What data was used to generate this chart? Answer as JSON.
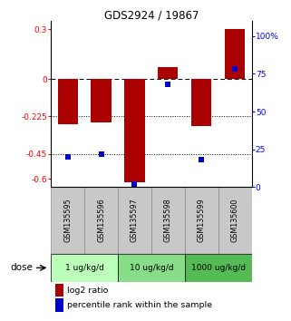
{
  "title": "GDS2924 / 19867",
  "samples": [
    "GSM135595",
    "GSM135596",
    "GSM135597",
    "GSM135598",
    "GSM135599",
    "GSM135600"
  ],
  "log2_ratio": [
    -0.27,
    -0.26,
    -0.62,
    0.07,
    -0.28,
    0.3
  ],
  "percentile_rank": [
    20,
    22,
    2,
    68,
    18,
    78
  ],
  "dose_groups": [
    {
      "label": "1 ug/kg/d",
      "start": 0,
      "end": 1,
      "color": "#bbffbb"
    },
    {
      "label": "10 ug/kg/d",
      "start": 2,
      "end": 3,
      "color": "#88dd88"
    },
    {
      "label": "1000 ug/kg/d",
      "start": 4,
      "end": 5,
      "color": "#55bb55"
    }
  ],
  "ylim_left": [
    -0.65,
    0.35
  ],
  "ylim_right": [
    0,
    110
  ],
  "yticks_left": [
    0.3,
    0.0,
    -0.225,
    -0.45,
    -0.6
  ],
  "yticks_left_labels": [
    "0.3",
    "0",
    "-0.225",
    "-0.45",
    "-0.6"
  ],
  "yticks_right": [
    100,
    75,
    50,
    25,
    0
  ],
  "yticks_right_labels": [
    "100%",
    "75",
    "50",
    "25",
    "0"
  ],
  "hlines_dotted": [
    -0.225,
    -0.45
  ],
  "hline_dashed": 0.0,
  "bar_color": "#aa0000",
  "dot_color": "#0000cc",
  "bar_width": 0.6,
  "legend_red": "log2 ratio",
  "legend_blue": "percentile rank within the sample",
  "background_color": "#ffffff",
  "sample_bg": "#c8c8c8",
  "sample_border": "#888888"
}
